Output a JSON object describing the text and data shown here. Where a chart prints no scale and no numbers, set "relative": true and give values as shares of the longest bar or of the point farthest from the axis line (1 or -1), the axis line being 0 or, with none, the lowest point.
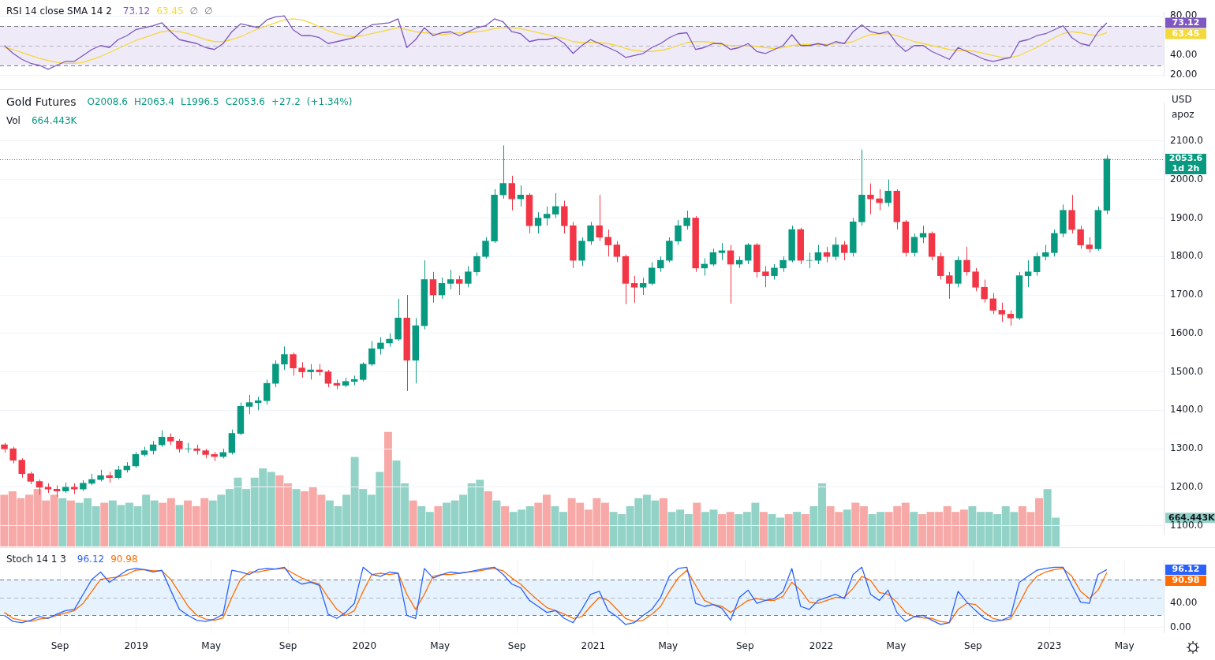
{
  "chart_data": [
    {
      "type": "line",
      "title": "RSI 14 close SMA 14 2",
      "subtitle": "73.12 63.45 ∅ ∅",
      "categories": [
        null,
        null,
        null,
        null,
        null,
        null,
        null,
        null,
        null,
        null,
        null,
        null,
        null,
        null,
        null,
        null,
        null,
        null,
        null,
        null,
        null,
        null,
        null,
        null,
        null,
        null,
        null,
        null,
        null,
        null,
        null,
        null,
        null,
        null,
        null,
        null,
        null,
        null,
        null,
        null,
        null,
        null,
        null,
        null,
        null,
        null,
        null,
        null,
        null,
        null,
        null,
        null,
        null,
        null,
        null,
        null,
        null,
        null,
        null,
        null,
        null,
        null,
        null,
        null,
        null,
        null,
        null,
        null,
        null,
        null,
        null,
        null,
        null,
        null,
        null,
        null,
        null,
        null,
        null,
        null,
        null,
        null,
        null,
        null,
        null,
        null,
        null,
        null,
        null,
        null,
        null,
        null,
        null,
        null,
        null,
        null,
        null,
        null,
        null,
        null,
        null,
        null,
        null,
        null,
        null,
        null,
        null,
        null,
        null,
        null,
        null,
        null,
        null,
        null,
        null,
        null,
        null,
        null,
        null,
        null,
        null,
        null,
        null,
        null,
        null,
        null,
        null,
        null,
        null,
        null,
        null,
        null,
        null
      ],
      "series": [
        {
          "color": "#7e57c2",
          "values": [
            50,
            42,
            36,
            32,
            30,
            26,
            30,
            34,
            34,
            40,
            46,
            50,
            48,
            56,
            60,
            66,
            68,
            70,
            73,
            64,
            56,
            54,
            52,
            48,
            46,
            52,
            64,
            72,
            70,
            68,
            76,
            79,
            80,
            66,
            60,
            60,
            58,
            52,
            54,
            56,
            58,
            66,
            71,
            72,
            73,
            77,
            48,
            56,
            68,
            60,
            63,
            64,
            60,
            64,
            68,
            70,
            77,
            74,
            64,
            62,
            54,
            56,
            56,
            58,
            52,
            42,
            50,
            56,
            52,
            48,
            44,
            38,
            40,
            42,
            48,
            52,
            58,
            62,
            63,
            46,
            48,
            52,
            52,
            46,
            48,
            52,
            44,
            42,
            46,
            50,
            61,
            50,
            50,
            52,
            50,
            54,
            52,
            64,
            71,
            64,
            62,
            64,
            52,
            44,
            50,
            50,
            44,
            40,
            36,
            48,
            44,
            40,
            36,
            34,
            36,
            38,
            54,
            56,
            60,
            62,
            66,
            70,
            58,
            52,
            50,
            64,
            73,
            null,
            null,
            null,
            null,
            null,
            null
          ]
        },
        {
          "color": "#f5d83a",
          "values": [
            48,
            46,
            43,
            40,
            37,
            35,
            33,
            32,
            32,
            33,
            36,
            39,
            43,
            47,
            51,
            55,
            58,
            61,
            64,
            65,
            64,
            62,
            59,
            56,
            54,
            54,
            56,
            59,
            63,
            67,
            70,
            73,
            76,
            77,
            76,
            73,
            69,
            65,
            62,
            60,
            59,
            60,
            62,
            64,
            66,
            68,
            66,
            64,
            63,
            62,
            61,
            62,
            63,
            63,
            64,
            65,
            67,
            68,
            68,
            67,
            65,
            63,
            61,
            59,
            57,
            54,
            53,
            53,
            53,
            52,
            50,
            47,
            45,
            44,
            44,
            45,
            47,
            50,
            53,
            54,
            54,
            53,
            51,
            50,
            50,
            50,
            49,
            48,
            47,
            48,
            50,
            51,
            51,
            51,
            51,
            52,
            52,
            54,
            58,
            61,
            62,
            62,
            60,
            57,
            54,
            52,
            50,
            48,
            46,
            45,
            45,
            44,
            42,
            40,
            38,
            38,
            40,
            44,
            48,
            53,
            58,
            62,
            64,
            63,
            61,
            60,
            63,
            null,
            null,
            null,
            null,
            null,
            null
          ]
        }
      ],
      "ylim": [
        18,
        84
      ],
      "yticks": [
        {
          "value": 80,
          "label": "80.00"
        },
        {
          "value": 40,
          "label": "40.00"
        },
        {
          "value": 20,
          "label": "20.00"
        }
      ],
      "bands": [
        {
          "axis": "y",
          "from": 30,
          "to": 70,
          "color": "#efeaf8"
        }
      ],
      "ref_lines": [
        {
          "axis": "y",
          "value": 70,
          "line_style": "dashed",
          "color": "#787b86"
        },
        {
          "axis": "y",
          "value": 50,
          "line_style": "dashed",
          "color": "#b2b5be"
        },
        {
          "axis": "y",
          "value": 30,
          "line_style": "dashed",
          "color": "#787b86"
        }
      ],
      "annotations": [
        "73.12",
        "63.45"
      ],
      "grid": "y",
      "tick_labels": "y"
    },
    {
      "type": "candlestick",
      "title": "Gold Futures",
      "subtitle": "O2008.6 H2063.4 L1996.5 C2053.6 +27.2 (+1.34%)",
      "categories": [
        null,
        null,
        null,
        null,
        null,
        null,
        null,
        null,
        null,
        null,
        null,
        null,
        null,
        null,
        null,
        null,
        null,
        null,
        null,
        null,
        null,
        null,
        null,
        null,
        null,
        null,
        null,
        null,
        null,
        null,
        null,
        null,
        null,
        null,
        null,
        null,
        null,
        null,
        null,
        null,
        null,
        null,
        null,
        null,
        null,
        null,
        null,
        null,
        null,
        null,
        null,
        null,
        null,
        null,
        null,
        null,
        null,
        null,
        null,
        null,
        null,
        null,
        null,
        null,
        null,
        null,
        null,
        null,
        null,
        null,
        null,
        null,
        null,
        null,
        null,
        null,
        null,
        null,
        null,
        null,
        null,
        null,
        null,
        null,
        null,
        null,
        null,
        null,
        null,
        null,
        null,
        null,
        null,
        null,
        null,
        null,
        null,
        null,
        null,
        null,
        null,
        null,
        null,
        null,
        null,
        null,
        null,
        null,
        null,
        null,
        null,
        null,
        null,
        null,
        null,
        null,
        null,
        null,
        null,
        null,
        null,
        null,
        null,
        null,
        null,
        null,
        null,
        null,
        null,
        null,
        null,
        null,
        null
      ],
      "ohlc": [
        [
          1310,
          1315,
          1290,
          1300
        ],
        [
          1300,
          1305,
          1262,
          1270
        ],
        [
          1270,
          1275,
          1225,
          1235
        ],
        [
          1235,
          1240,
          1208,
          1215
        ],
        [
          1215,
          1220,
          1180,
          1200
        ],
        [
          1200,
          1210,
          1185,
          1195
        ],
        [
          1195,
          1205,
          1175,
          1190
        ],
        [
          1190,
          1212,
          1185,
          1200
        ],
        [
          1200,
          1210,
          1182,
          1195
        ],
        [
          1195,
          1218,
          1190,
          1210
        ],
        [
          1210,
          1235,
          1205,
          1220
        ],
        [
          1220,
          1245,
          1215,
          1230
        ],
        [
          1230,
          1240,
          1212,
          1225
        ],
        [
          1225,
          1255,
          1220,
          1245
        ],
        [
          1245,
          1265,
          1238,
          1255
        ],
        [
          1255,
          1292,
          1250,
          1285
        ],
        [
          1285,
          1305,
          1280,
          1295
        ],
        [
          1295,
          1320,
          1285,
          1310
        ],
        [
          1310,
          1348,
          1305,
          1330
        ],
        [
          1330,
          1340,
          1310,
          1320
        ],
        [
          1320,
          1325,
          1290,
          1300
        ],
        [
          1300,
          1315,
          1290,
          1300
        ],
        [
          1300,
          1310,
          1285,
          1295
        ],
        [
          1295,
          1300,
          1275,
          1285
        ],
        [
          1285,
          1292,
          1268,
          1280
        ],
        [
          1280,
          1300,
          1275,
          1290
        ],
        [
          1290,
          1350,
          1285,
          1340
        ],
        [
          1340,
          1420,
          1335,
          1410
        ],
        [
          1410,
          1440,
          1390,
          1420
        ],
        [
          1420,
          1435,
          1400,
          1425
        ],
        [
          1425,
          1480,
          1415,
          1470
        ],
        [
          1470,
          1530,
          1460,
          1520
        ],
        [
          1520,
          1566,
          1505,
          1545
        ],
        [
          1545,
          1550,
          1490,
          1510
        ],
        [
          1510,
          1525,
          1485,
          1500
        ],
        [
          1500,
          1520,
          1480,
          1505
        ],
        [
          1505,
          1520,
          1490,
          1500
        ],
        [
          1500,
          1505,
          1460,
          1470
        ],
        [
          1470,
          1480,
          1455,
          1465
        ],
        [
          1465,
          1485,
          1460,
          1475
        ],
        [
          1475,
          1490,
          1465,
          1480
        ],
        [
          1480,
          1525,
          1475,
          1520
        ],
        [
          1520,
          1580,
          1515,
          1560
        ],
        [
          1560,
          1590,
          1545,
          1575
        ],
        [
          1575,
          1600,
          1565,
          1585
        ],
        [
          1585,
          1690,
          1580,
          1640
        ],
        [
          1640,
          1700,
          1450,
          1530
        ],
        [
          1530,
          1640,
          1470,
          1620
        ],
        [
          1620,
          1790,
          1610,
          1740
        ],
        [
          1740,
          1760,
          1680,
          1700
        ],
        [
          1700,
          1745,
          1690,
          1730
        ],
        [
          1730,
          1765,
          1715,
          1740
        ],
        [
          1740,
          1750,
          1700,
          1730
        ],
        [
          1730,
          1775,
          1720,
          1760
        ],
        [
          1760,
          1810,
          1750,
          1800
        ],
        [
          1800,
          1850,
          1795,
          1840
        ],
        [
          1840,
          1975,
          1835,
          1960
        ],
        [
          1960,
          2089,
          1950,
          1990
        ],
        [
          1990,
          2010,
          1920,
          1950
        ],
        [
          1950,
          1985,
          1930,
          1960
        ],
        [
          1960,
          1965,
          1860,
          1880
        ],
        [
          1880,
          1915,
          1860,
          1900
        ],
        [
          1900,
          1930,
          1880,
          1910
        ],
        [
          1910,
          1965,
          1900,
          1930
        ],
        [
          1930,
          1945,
          1860,
          1880
        ],
        [
          1880,
          1890,
          1770,
          1790
        ],
        [
          1790,
          1850,
          1775,
          1840
        ],
        [
          1840,
          1890,
          1830,
          1880
        ],
        [
          1880,
          1960,
          1840,
          1850
        ],
        [
          1850,
          1870,
          1800,
          1830
        ],
        [
          1830,
          1840,
          1785,
          1800
        ],
        [
          1800,
          1805,
          1676,
          1730
        ],
        [
          1730,
          1750,
          1680,
          1720
        ],
        [
          1720,
          1745,
          1700,
          1730
        ],
        [
          1730,
          1785,
          1725,
          1770
        ],
        [
          1770,
          1800,
          1760,
          1790
        ],
        [
          1790,
          1850,
          1785,
          1840
        ],
        [
          1840,
          1895,
          1830,
          1880
        ],
        [
          1880,
          1919,
          1870,
          1900
        ],
        [
          1900,
          1905,
          1760,
          1770
        ],
        [
          1770,
          1795,
          1750,
          1780
        ],
        [
          1780,
          1820,
          1775,
          1810
        ],
        [
          1810,
          1835,
          1790,
          1815
        ],
        [
          1815,
          1830,
          1677,
          1780
        ],
        [
          1780,
          1800,
          1770,
          1790
        ],
        [
          1790,
          1835,
          1780,
          1830
        ],
        [
          1830,
          1835,
          1745,
          1760
        ],
        [
          1760,
          1775,
          1720,
          1750
        ],
        [
          1750,
          1780,
          1740,
          1770
        ],
        [
          1770,
          1800,
          1760,
          1790
        ],
        [
          1790,
          1880,
          1785,
          1870
        ],
        [
          1870,
          1875,
          1780,
          1790
        ],
        [
          1790,
          1810,
          1770,
          1790
        ],
        [
          1790,
          1830,
          1780,
          1810
        ],
        [
          1810,
          1825,
          1785,
          1800
        ],
        [
          1800,
          1850,
          1790,
          1830
        ],
        [
          1830,
          1840,
          1790,
          1810
        ],
        [
          1810,
          1900,
          1800,
          1890
        ],
        [
          1890,
          2078,
          1880,
          1960
        ],
        [
          1960,
          1990,
          1910,
          1950
        ],
        [
          1950,
          1975,
          1920,
          1940
        ],
        [
          1940,
          2000,
          1930,
          1970
        ],
        [
          1970,
          1975,
          1870,
          1890
        ],
        [
          1890,
          1895,
          1800,
          1810
        ],
        [
          1810,
          1860,
          1800,
          1850
        ],
        [
          1850,
          1880,
          1835,
          1860
        ],
        [
          1860,
          1865,
          1790,
          1800
        ],
        [
          1800,
          1810,
          1740,
          1750
        ],
        [
          1750,
          1760,
          1690,
          1730
        ],
        [
          1730,
          1800,
          1720,
          1790
        ],
        [
          1790,
          1825,
          1750,
          1760
        ],
        [
          1760,
          1770,
          1710,
          1720
        ],
        [
          1720,
          1740,
          1680,
          1690
        ],
        [
          1690,
          1705,
          1650,
          1660
        ],
        [
          1660,
          1680,
          1630,
          1650
        ],
        [
          1650,
          1660,
          1620,
          1640
        ],
        [
          1640,
          1760,
          1635,
          1750
        ],
        [
          1750,
          1790,
          1720,
          1760
        ],
        [
          1760,
          1810,
          1750,
          1800
        ],
        [
          1800,
          1830,
          1790,
          1810
        ],
        [
          1810,
          1870,
          1800,
          1860
        ],
        [
          1860,
          1935,
          1850,
          1920
        ],
        [
          1920,
          1960,
          1860,
          1870
        ],
        [
          1870,
          1880,
          1820,
          1830
        ],
        [
          1830,
          1850,
          1810,
          1820
        ],
        [
          1820,
          1930,
          1815,
          1920
        ],
        [
          1920,
          2063.4,
          1910,
          2053.6
        ],
        null,
        null,
        null,
        null,
        null,
        null
      ],
      "ylim": [
        1077,
        2200
      ],
      "yticks": [
        {
          "value": 1100,
          "label": "1100.0"
        },
        {
          "value": 1200,
          "label": "1200.0"
        },
        {
          "value": 1300,
          "label": "1300.0"
        },
        {
          "value": 1400,
          "label": "1400.0"
        },
        {
          "value": 1500,
          "label": "1500.0"
        },
        {
          "value": 1600,
          "label": "1600.0"
        },
        {
          "value": 1700,
          "label": "1700.0"
        },
        {
          "value": 1800,
          "label": "1800.0"
        },
        {
          "value": 1900,
          "label": "1900.0"
        },
        {
          "value": 2000,
          "label": "2000.0"
        },
        {
          "value": 2100,
          "label": "2100.0"
        }
      ],
      "ref_lines": [
        {
          "axis": "y",
          "value": 2053.6,
          "label": "2053.6\n1d 2h",
          "color": "#089981",
          "line_style": "dotted"
        }
      ],
      "annotations": [
        "USD",
        "apoz"
      ],
      "grid": "y",
      "tick_labels": "y"
    },
    {
      "type": "bar",
      "relative": true,
      "title": "Vol",
      "subtitle": "664.443K",
      "categories": [
        null,
        null,
        null,
        null,
        null,
        null,
        null,
        null,
        null,
        null,
        null,
        null,
        null,
        null,
        null,
        null,
        null,
        null,
        null,
        null,
        null,
        null,
        null,
        null,
        null,
        null,
        null,
        null,
        null,
        null,
        null,
        null,
        null,
        null,
        null,
        null,
        null,
        null,
        null,
        null,
        null,
        null,
        null,
        null,
        null,
        null,
        null,
        null,
        null,
        null,
        null,
        null,
        null,
        null,
        null,
        null,
        null,
        null,
        null,
        null,
        null,
        null,
        null,
        null,
        null,
        null,
        null,
        null,
        null,
        null,
        null,
        null,
        null,
        null,
        null,
        null,
        null,
        null,
        null,
        null,
        null,
        null,
        null,
        null,
        null,
        null,
        null,
        null,
        null,
        null,
        null,
        null,
        null,
        null,
        null,
        null,
        null,
        null,
        null,
        null,
        null,
        null,
        null,
        null,
        null,
        null,
        null,
        null,
        null,
        null,
        null,
        null,
        null,
        null,
        null,
        null,
        null,
        null,
        null,
        null,
        null,
        null,
        null,
        null,
        null,
        null,
        null
      ],
      "values": [
        0.45,
        0.48,
        0.42,
        0.45,
        0.5,
        0.4,
        0.45,
        0.42,
        0.4,
        0.38,
        0.42,
        0.35,
        0.38,
        0.4,
        0.36,
        0.38,
        0.35,
        0.45,
        0.4,
        0.38,
        0.42,
        0.36,
        0.4,
        0.35,
        0.42,
        0.4,
        0.45,
        0.5,
        0.6,
        0.5,
        0.6,
        0.68,
        0.65,
        0.62,
        0.55,
        0.5,
        0.48,
        0.52,
        0.45,
        0.4,
        0.35,
        0.45,
        0.78,
        0.5,
        0.45,
        0.65,
        1,
        0.75,
        0.55,
        0.4,
        0.35,
        0.3,
        0.35,
        0.38,
        0.4,
        0.45,
        0.55,
        0.58,
        0.48,
        0.4,
        0.35,
        0.3,
        0.32,
        0.35,
        0.38,
        0.45,
        0.35,
        0.3,
        0.42,
        0.38,
        0.32,
        0.42,
        0.38,
        0.3,
        0.28,
        0.35,
        0.42,
        0.45,
        0.4,
        0.42,
        0.3,
        0.32,
        0.28,
        0.38,
        0.3,
        0.32,
        0.28,
        0.3,
        0.28,
        0.3,
        0.38,
        0.3,
        0.28,
        0.25,
        0.28,
        0.3,
        0.28,
        0.35,
        0.55,
        0.35,
        0.3,
        0.32,
        0.38,
        0.35,
        0.28,
        0.3,
        0.3,
        0.35,
        0.38,
        0.3,
        0.28,
        0.3,
        0.3,
        0.35,
        0.3,
        0.32,
        0.35,
        0.3,
        0.3,
        0.28,
        0.35,
        0.3,
        0.35,
        0.3,
        0.42,
        0.5,
        0.25
      ],
      "colors": [
        "#f7a9a7",
        "#f7a9a7",
        "#f7a9a7",
        "#f7a9a7",
        "#f7a9a7",
        "#f7a9a7",
        "#f7a9a7",
        "#93d2c6",
        "#f7a9a7",
        "#93d2c6",
        "#93d2c6",
        "#93d2c6",
        "#f7a9a7",
        "#93d2c6",
        "#93d2c6",
        "#93d2c6",
        "#93d2c6",
        "#93d2c6",
        "#93d2c6",
        "#f7a9a7",
        "#f7a9a7",
        "#93d2c6",
        "#f7a9a7",
        "#f7a9a7",
        "#f7a9a7",
        "#93d2c6",
        "#93d2c6",
        "#93d2c6",
        "#93d2c6",
        "#93d2c6",
        "#93d2c6",
        "#93d2c6",
        "#93d2c6",
        "#f7a9a7",
        "#f7a9a7",
        "#93d2c6",
        "#f7a9a7",
        "#f7a9a7",
        "#f7a9a7",
        "#93d2c6",
        "#93d2c6",
        "#93d2c6",
        "#93d2c6",
        "#93d2c6",
        "#93d2c6",
        "#93d2c6",
        "#f7a9a7",
        "#93d2c6",
        "#93d2c6",
        "#f7a9a7",
        "#93d2c6",
        "#93d2c6",
        "#f7a9a7",
        "#93d2c6",
        "#93d2c6",
        "#93d2c6",
        "#93d2c6",
        "#93d2c6",
        "#f7a9a7",
        "#93d2c6",
        "#f7a9a7",
        "#93d2c6",
        "#93d2c6",
        "#93d2c6",
        "#f7a9a7",
        "#f7a9a7",
        "#93d2c6",
        "#93d2c6",
        "#f7a9a7",
        "#f7a9a7",
        "#f7a9a7",
        "#f7a9a7",
        "#f7a9a7",
        "#93d2c6",
        "#93d2c6",
        "#93d2c6",
        "#93d2c6",
        "#93d2c6",
        "#93d2c6",
        "#f7a9a7",
        "#93d2c6",
        "#93d2c6",
        "#93d2c6",
        "#f7a9a7",
        "#93d2c6",
        "#93d2c6",
        "#f7a9a7",
        "#f7a9a7",
        "#93d2c6",
        "#93d2c6",
        "#93d2c6",
        "#f7a9a7",
        "#93d2c6",
        "#93d2c6",
        "#f7a9a7",
        "#93d2c6",
        "#f7a9a7",
        "#93d2c6",
        "#93d2c6",
        "#f7a9a7",
        "#f7a9a7",
        "#93d2c6",
        "#f7a9a7",
        "#f7a9a7",
        "#93d2c6",
        "#93d2c6",
        "#f7a9a7",
        "#f7a9a7",
        "#f7a9a7",
        "#93d2c6",
        "#f7a9a7",
        "#f7a9a7",
        "#f7a9a7",
        "#f7a9a7",
        "#f7a9a7",
        "#f7a9a7",
        "#93d2c6",
        "#93d2c6",
        "#93d2c6",
        "#93d2c6",
        "#93d2c6",
        "#93d2c6",
        "#f7a9a7",
        "#f7a9a7",
        "#f7a9a7",
        "#93d2c6",
        "#93d2c6"
      ],
      "annotations": [
        "664.443K"
      ],
      "tick_labels": "y"
    },
    {
      "type": "line",
      "title": "Stoch 14 1 3",
      "subtitle": "96.12 90.98",
      "x": [
        "2018-06-04",
        "2018-06-18",
        "2018-07-02",
        "2018-07-16",
        "2018-07-30",
        "2018-08-13",
        "2018-08-27",
        "2018-09-10",
        "2018-09-24",
        "2018-10-08",
        "2018-10-22",
        "2018-11-05",
        "2018-11-19",
        "2018-12-03",
        "2018-12-17",
        "2018-12-31",
        "2019-01-14",
        "2019-01-28",
        "2019-02-11",
        "2019-02-25",
        "2019-03-11",
        "2019-03-25",
        "2019-04-08",
        "2019-04-22",
        "2019-05-06",
        "2019-05-20",
        "2019-06-03",
        "2019-06-17",
        "2019-07-01",
        "2019-07-15",
        "2019-07-29",
        "2019-08-12",
        "2019-08-26",
        "2019-09-09",
        "2019-09-23",
        "2019-10-07",
        "2019-10-21",
        "2019-11-04",
        "2019-11-18",
        "2019-12-02",
        "2019-12-16",
        "2019-12-30",
        "2020-01-13",
        "2020-01-27",
        "2020-02-10",
        "2020-02-24",
        "2020-03-09",
        "2020-03-23",
        "2020-04-06",
        "2020-04-20",
        "2020-05-04",
        "2020-05-18",
        "2020-06-01",
        "2020-06-15",
        "2020-06-29",
        "2020-07-13",
        "2020-07-27",
        "2020-08-10",
        "2020-08-24",
        "2020-09-07",
        "2020-09-21",
        "2020-10-05",
        "2020-10-19",
        "2020-11-02",
        "2020-11-16",
        "2020-11-30",
        "2020-12-14",
        "2020-12-28",
        "2021-01-11",
        "2021-01-25",
        "2021-02-08",
        "2021-02-22",
        "2021-03-08",
        "2021-03-22",
        "2021-04-05",
        "2021-04-19",
        "2021-05-03",
        "2021-05-17",
        "2021-05-31",
        "2021-06-14",
        "2021-06-28",
        "2021-07-12",
        "2021-07-26",
        "2021-08-09",
        "2021-08-23",
        "2021-09-06",
        "2021-09-20",
        "2021-10-04",
        "2021-10-18",
        "2021-11-01",
        "2021-11-15",
        "2021-11-29",
        "2021-12-13",
        "2021-12-27",
        "2022-01-10",
        "2022-01-24",
        "2022-02-07",
        "2022-02-21",
        "2022-03-07",
        "2022-03-21",
        "2022-04-04",
        "2022-04-18",
        "2022-05-02",
        "2022-05-16",
        "2022-05-30",
        "2022-06-13",
        "2022-06-27",
        "2022-07-11",
        "2022-07-25",
        "2022-08-08",
        "2022-08-22",
        "2022-09-05",
        "2022-09-19",
        "2022-10-03",
        "2022-10-17",
        "2022-10-31",
        "2022-11-14",
        "2022-11-28",
        "2022-12-12",
        "2022-12-26",
        "2023-01-09",
        "2023-01-23",
        "2023-02-06",
        "2023-02-20",
        "2023-03-06",
        "2023-03-20",
        "2023-04-03"
      ],
      "series": [
        {
          "color": "#2962ff",
          "values": [
            20,
            10,
            8,
            12,
            18,
            15,
            22,
            28,
            30,
            55,
            80,
            92,
            75,
            85,
            95,
            98,
            96,
            92,
            95,
            62,
            30,
            20,
            12,
            10,
            14,
            22,
            95,
            92,
            88,
            96,
            98,
            97,
            100,
            80,
            72,
            75,
            70,
            22,
            15,
            25,
            40,
            100,
            88,
            85,
            92,
            90,
            20,
            15,
            98,
            82,
            88,
            92,
            90,
            92,
            95,
            98,
            100,
            88,
            72,
            66,
            45,
            35,
            25,
            28,
            15,
            8,
            30,
            55,
            60,
            28,
            18,
            5,
            8,
            20,
            30,
            50,
            85,
            98,
            100,
            40,
            35,
            38,
            32,
            12,
            50,
            62,
            40,
            45,
            48,
            60,
            98,
            35,
            30,
            45,
            50,
            55,
            48,
            88,
            100,
            55,
            45,
            62,
            25,
            10,
            18,
            20,
            12,
            5,
            8,
            60,
            42,
            28,
            15,
            10,
            12,
            18,
            75,
            85,
            95,
            98,
            100,
            100,
            70,
            42,
            40,
            88,
            96
          ]
        },
        {
          "color": "#ff6d00",
          "values": [
            25,
            15,
            12,
            10,
            14,
            16,
            20,
            24,
            28,
            40,
            60,
            80,
            82,
            84,
            88,
            95,
            96,
            94,
            94,
            80,
            58,
            35,
            20,
            14,
            12,
            16,
            50,
            80,
            92,
            92,
            95,
            97,
            98,
            90,
            82,
            76,
            72,
            50,
            30,
            20,
            28,
            60,
            88,
            90,
            88,
            90,
            55,
            30,
            55,
            85,
            88,
            88,
            90,
            92,
            93,
            96,
            98,
            94,
            82,
            72,
            58,
            45,
            33,
            28,
            22,
            15,
            18,
            35,
            50,
            45,
            30,
            15,
            10,
            12,
            22,
            35,
            60,
            82,
            95,
            70,
            45,
            38,
            35,
            25,
            35,
            45,
            48,
            45,
            45,
            52,
            75,
            62,
            42,
            40,
            45,
            50,
            50,
            65,
            85,
            78,
            58,
            55,
            42,
            25,
            18,
            16,
            15,
            10,
            8,
            30,
            40,
            38,
            25,
            15,
            12,
            14,
            40,
            68,
            85,
            92,
            96,
            98,
            85,
            60,
            48,
            62,
            91
          ]
        }
      ],
      "xlim": [
        "2018-05-28",
        "2023-07-03"
      ],
      "xticks": [
        {
          "value": "2018-09-01",
          "label": "Sep"
        },
        {
          "value": "2019-01-01",
          "label": "2019"
        },
        {
          "value": "2019-05-01",
          "label": "May"
        },
        {
          "value": "2019-09-01",
          "label": "Sep"
        },
        {
          "value": "2020-01-01",
          "label": "2020"
        },
        {
          "value": "2020-05-01",
          "label": "May"
        },
        {
          "value": "2020-09-01",
          "label": "Sep"
        },
        {
          "value": "2021-01-01",
          "label": "2021"
        },
        {
          "value": "2021-05-01",
          "label": "May"
        },
        {
          "value": "2021-09-01",
          "label": "Sep"
        },
        {
          "value": "2022-01-01",
          "label": "2022"
        },
        {
          "value": "2022-05-01",
          "label": "May"
        },
        {
          "value": "2022-09-01",
          "label": "Sep"
        },
        {
          "value": "2023-01-01",
          "label": "2023"
        },
        {
          "value": "2023-05-01",
          "label": "May"
        }
      ],
      "ylim": [
        -9,
        112
      ],
      "yticks": [
        {
          "value": 0,
          "label": "0.00"
        },
        {
          "value": 40,
          "label": "40.00"
        }
      ],
      "bands": [
        {
          "axis": "y",
          "from": 20,
          "to": 80,
          "color": "#e6f2fd"
        }
      ],
      "ref_lines": [
        {
          "axis": "y",
          "value": 80,
          "line_style": "dashed",
          "color": "#787b86"
        },
        {
          "axis": "y",
          "value": 50,
          "line_style": "dashed",
          "color": "#b2b5be"
        },
        {
          "axis": "y",
          "value": 20,
          "line_style": "dashed",
          "color": "#787b86"
        }
      ],
      "annotations": [
        "96.12",
        "90.98"
      ],
      "grid": true
    }
  ]
}
